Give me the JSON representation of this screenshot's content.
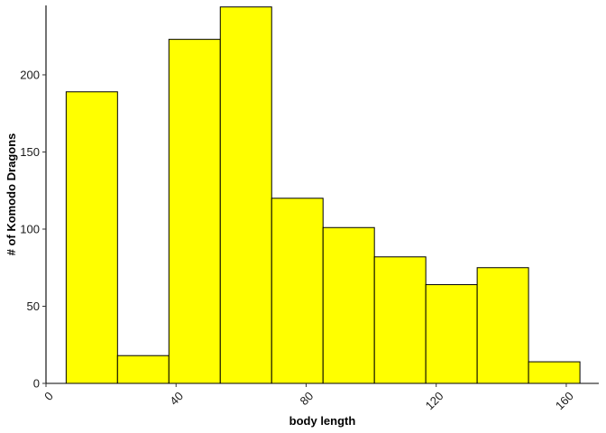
{
  "chart_data": {
    "type": "bar",
    "title": "",
    "xlabel": "body length",
    "ylabel": "# of Komodo Dragons",
    "bins": [
      {
        "x0": 6.2,
        "x1": 22.0,
        "count": 189
      },
      {
        "x0": 22.0,
        "x1": 37.8,
        "count": 18
      },
      {
        "x0": 37.8,
        "x1": 53.6,
        "count": 223
      },
      {
        "x0": 53.6,
        "x1": 69.4,
        "count": 244
      },
      {
        "x0": 69.4,
        "x1": 85.2,
        "count": 120
      },
      {
        "x0": 85.2,
        "x1": 101.0,
        "count": 101
      },
      {
        "x0": 101.0,
        "x1": 116.8,
        "count": 82
      },
      {
        "x0": 116.8,
        "x1": 132.6,
        "count": 64
      },
      {
        "x0": 132.6,
        "x1": 148.4,
        "count": 75
      },
      {
        "x0": 148.4,
        "x1": 164.2,
        "count": 14
      }
    ],
    "xlim": [
      0,
      170
    ],
    "ylim": [
      0,
      245
    ],
    "x_ticks": [
      0,
      40,
      80,
      120,
      160
    ],
    "x_tick_labels": [
      "0",
      "40",
      "80",
      "120",
      "160"
    ],
    "y_ticks": [
      0,
      50,
      100,
      150,
      200
    ],
    "y_tick_labels": [
      "0",
      "50",
      "100",
      "150",
      "200"
    ],
    "x_tick_rotation": "45 degrees",
    "grid": false,
    "legend": "none",
    "bar_fill": "#ffff00",
    "bar_outline": "#000000"
  }
}
